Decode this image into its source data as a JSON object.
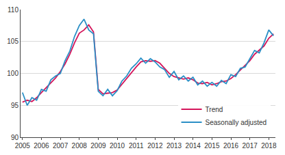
{
  "chart_data": {
    "type": "line",
    "x": [
      2005,
      2005.25,
      2005.5,
      2005.75,
      2006,
      2006.25,
      2006.5,
      2006.75,
      2007,
      2007.25,
      2007.5,
      2007.75,
      2008,
      2008.25,
      2008.5,
      2008.75,
      2009,
      2009.25,
      2009.5,
      2009.75,
      2010,
      2010.25,
      2010.5,
      2010.75,
      2011,
      2011.25,
      2011.5,
      2011.75,
      2012,
      2012.25,
      2012.5,
      2012.75,
      2013,
      2013.25,
      2013.5,
      2013.75,
      2014,
      2014.25,
      2014.5,
      2014.75,
      2015,
      2015.25,
      2015.5,
      2015.75,
      2016,
      2016.25,
      2016.5,
      2016.75,
      2017,
      2017.25,
      2017.5,
      2017.75,
      2018,
      2018.25
    ],
    "series": [
      {
        "name": "Trend",
        "color": "#d4145a",
        "values": [
          95.5,
          95.8,
          95.6,
          96.2,
          97.0,
          97.8,
          98.6,
          99.3,
          100.3,
          101.5,
          103.0,
          104.8,
          106.3,
          106.8,
          107.6,
          106.5,
          97.5,
          96.8,
          96.9,
          97.0,
          97.4,
          98.3,
          99.2,
          100.2,
          101.0,
          101.8,
          102.0,
          101.9,
          102.0,
          101.6,
          100.8,
          100.0,
          99.5,
          99.3,
          99.1,
          99.3,
          99.0,
          98.5,
          98.4,
          98.6,
          98.2,
          98.4,
          98.7,
          98.8,
          99.2,
          99.8,
          100.5,
          101.2,
          102.0,
          103.0,
          103.6,
          104.3,
          105.5,
          106.2
        ]
      },
      {
        "name": "Seasonally adjusted",
        "color": "#2a8fc6",
        "values": [
          97.0,
          95.0,
          96.2,
          95.8,
          97.5,
          97.2,
          99.0,
          99.6,
          100.0,
          102.0,
          103.5,
          105.8,
          107.5,
          108.5,
          106.8,
          106.2,
          97.2,
          96.5,
          97.5,
          96.5,
          97.3,
          98.8,
          99.6,
          100.8,
          101.5,
          102.4,
          101.6,
          102.3,
          101.8,
          101.0,
          100.6,
          99.4,
          100.3,
          99.0,
          99.6,
          98.8,
          99.4,
          98.2,
          98.8,
          98.0,
          98.6,
          98.0,
          98.9,
          98.4,
          99.8,
          99.5,
          100.8,
          101.0,
          102.3,
          103.6,
          103.2,
          104.8,
          106.8,
          105.9
        ]
      }
    ],
    "xlim": [
      2004.9,
      2018.35
    ],
    "xticks": [
      2005,
      2006,
      2007,
      2008,
      2009,
      2010,
      2011,
      2012,
      2013,
      2014,
      2015,
      2016,
      2017,
      2018
    ],
    "ylim": [
      90,
      110
    ],
    "yticks": [
      90,
      95,
      100,
      105,
      110
    ],
    "grid": true,
    "legend": "lower right"
  }
}
